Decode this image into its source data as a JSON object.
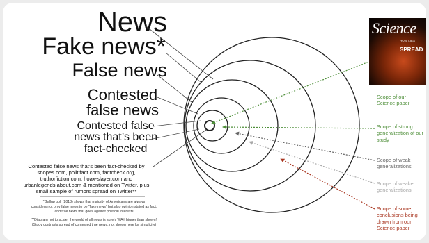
{
  "labels": {
    "news": "News",
    "fake_news": "Fake news*",
    "false_news": "False news",
    "contested_line1": "Contested",
    "contested_line2": "false news",
    "checked_line1": "Contested false",
    "checked_line2": "news that’s been",
    "checked_line3": "fact-checked"
  },
  "description_lines": [
    "Contested false news that’s been fact-checked by",
    "snopes.com, politifact.com, factcheck.org,",
    "truthorfiction.com, hoax-slayer.com and",
    "urbanlegends.about.com & mentioned on Twitter, plus",
    "small sample of rumors spread on Twitter**"
  ],
  "footnotes": {
    "note1_lines": [
      "*Gallup poll (2018) shows that majority of Americans are always",
      "considers not only false news to be “fake news” but also opinion stated as fact,",
      "and true news that goes against political interests"
    ],
    "note2_lines": [
      "**Diagram not to scale, the world of all news is surely WAY bigger than shown!",
      "(Study contrasts spread of contested true news, not shown here for simplicity)"
    ]
  },
  "cover": {
    "title": "Science",
    "subtitle": "HOW LIES",
    "headline": "SPREAD"
  },
  "scopes": {
    "paper": {
      "line1": "Scope of our",
      "line2": "Science paper",
      "color": "#4f8f3a"
    },
    "strong": {
      "line1": "Scope of strong",
      "line2": "generalization of our",
      "line3": "study",
      "color": "#4f8f3a"
    },
    "weak": {
      "line1": "Scope of weak",
      "line2": "generalizations",
      "color": "#666666"
    },
    "weaker": {
      "line1": "Scope of weaker",
      "line2": "generalizations",
      "color": "#a9a9a9"
    },
    "conclusions": {
      "line1": "Scope of some",
      "line2": "conclusions being",
      "line3": "drawn from our",
      "line4": "Science paper",
      "color": "#a8351f"
    }
  }
}
